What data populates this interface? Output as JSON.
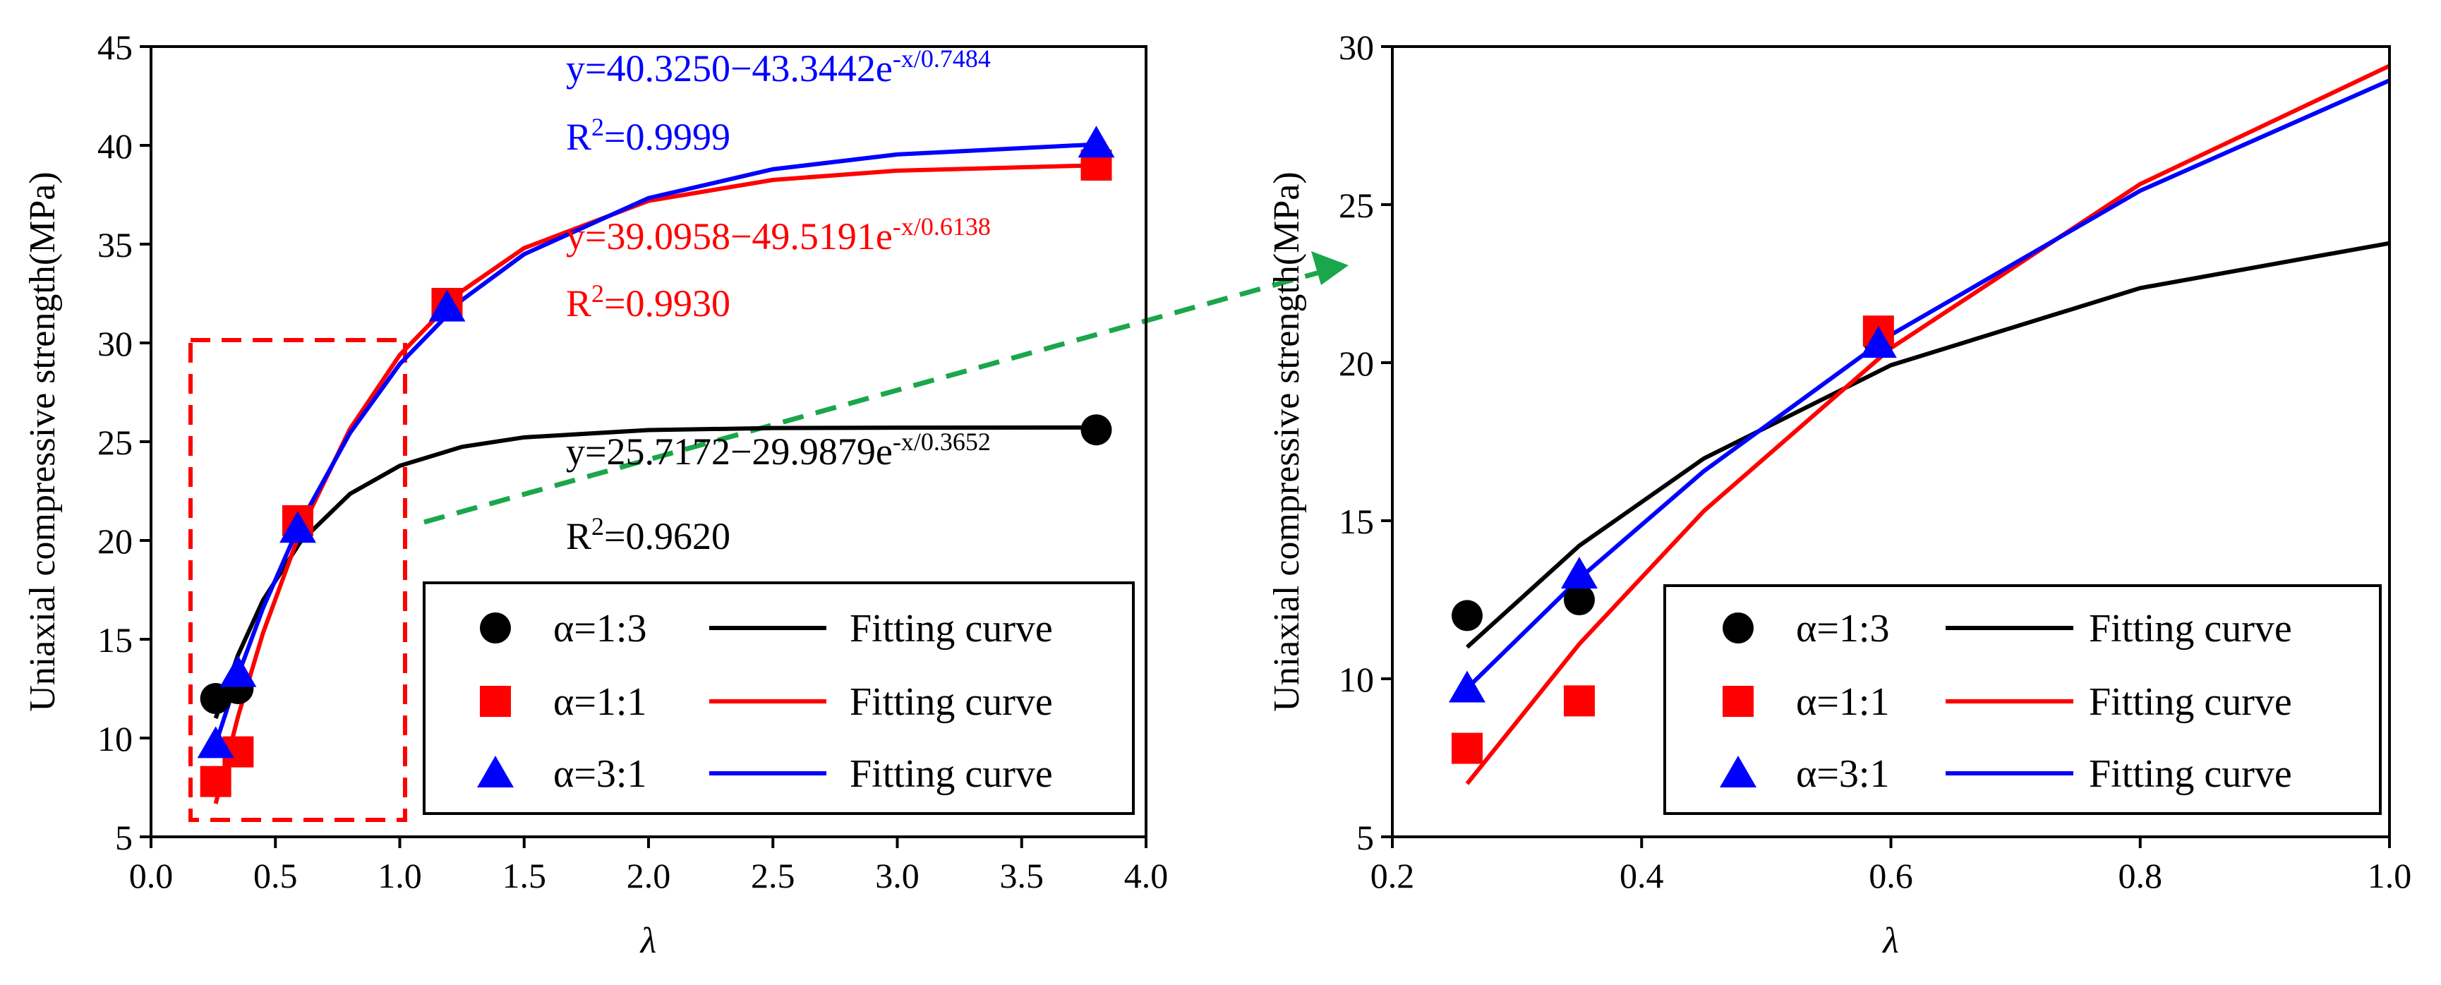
{
  "chart_data": [
    {
      "type": "scatter",
      "xlabel": "λ",
      "ylabel": "Uniaxial compressive strength(MPa)",
      "xlim": [
        0,
        4
      ],
      "xticks": [
        {
          "value": 0,
          "label": "0.0"
        },
        0.5,
        {
          "value": 1,
          "label": "1.0"
        },
        1.5,
        {
          "value": 2,
          "label": "2.0"
        },
        2.5,
        {
          "value": 3,
          "label": "3.0"
        },
        3.5,
        {
          "value": 4,
          "label": "4.0"
        }
      ],
      "ylim": [
        5,
        45
      ],
      "yticks": [
        5,
        10,
        15,
        20,
        25,
        30,
        35,
        40,
        45
      ],
      "legend": "lower right",
      "series": [
        {
          "name": "α=1:3",
          "color": "#000000",
          "marker": "circle",
          "x": [
            0.26,
            0.35,
            0.59,
            3.8
          ],
          "values": [
            12,
            12.5,
            20.7,
            25.6
          ],
          "fit_name": "Fitting curve",
          "fit_x": [
            0.26,
            0.35,
            0.45,
            0.6,
            0.8,
            1.0,
            1.25,
            1.5,
            2.0,
            2.5,
            3.0,
            3.8
          ],
          "fit_values": [
            11.0,
            14.21,
            16.97,
            19.92,
            22.36,
            23.78,
            24.74,
            25.22,
            25.59,
            25.69,
            25.71,
            25.72
          ]
        },
        {
          "name": "α=1:1",
          "color": "#ff0000",
          "marker": "square",
          "x": [
            0.26,
            0.35,
            0.59,
            1.19,
            3.8
          ],
          "values": [
            7.8,
            9.3,
            21,
            32,
            39
          ],
          "fit_name": "Fitting curve",
          "fit_x": [
            0.26,
            0.35,
            0.45,
            0.6,
            0.8,
            1.0,
            1.25,
            1.5,
            2.0,
            2.5,
            3.0,
            3.8
          ],
          "fit_values": [
            6.68,
            11.1,
            15.31,
            20.46,
            25.65,
            29.39,
            32.63,
            34.8,
            37.19,
            38.25,
            38.72,
            38.99
          ]
        },
        {
          "name": "α=3:1",
          "color": "#0000ff",
          "marker": "triangle",
          "x": [
            0.26,
            0.35,
            0.59,
            1.19,
            3.8
          ],
          "values": [
            9.7,
            13.3,
            20.6,
            31.8,
            40.1
          ],
          "fit_name": "Fitting curve",
          "fit_x": [
            0.26,
            0.35,
            0.45,
            0.6,
            0.8,
            1.0,
            1.25,
            1.5,
            2.0,
            2.5,
            3.0,
            3.8
          ],
          "fit_values": [
            9.7,
            13.17,
            16.57,
            20.88,
            25.44,
            28.93,
            32.17,
            34.49,
            37.33,
            38.79,
            39.54,
            40.05
          ]
        }
      ],
      "annotations": [
        {
          "color": "#0000ff",
          "lines": [
            [
              "y=40.3250−43.3442e",
              "-x/0.7484"
            ],
            [
              "R",
              "2",
              "=0.9999"
            ]
          ]
        },
        {
          "color": "#ff0000",
          "lines": [
            [
              "y=39.0958−49.5191e",
              "-x/0.6138"
            ],
            [
              "R",
              "2",
              "=0.9930"
            ]
          ]
        },
        {
          "color": "#000000",
          "lines": [
            [
              "y=25.7172−29.9879e",
              "-x/0.3652"
            ],
            [
              "R",
              "2",
              "=0.9620"
            ]
          ]
        }
      ]
    },
    {
      "type": "scatter",
      "xlabel": "λ",
      "ylabel": "Uniaxial compressive strength(MPa)",
      "xlim": [
        0.2,
        1.0
      ],
      "xticks": [
        0.2,
        0.4,
        0.6,
        0.8,
        {
          "value": 1,
          "label": "1.0"
        }
      ],
      "ylim": [
        5,
        30
      ],
      "yticks": [
        5,
        10,
        15,
        20,
        25,
        30
      ],
      "legend": "lower right",
      "series": [
        {
          "name": "α=1:3",
          "color": "#000000",
          "marker": "circle",
          "x": [
            0.26,
            0.35,
            0.59
          ],
          "values": [
            12,
            12.5,
            20.7
          ],
          "fit_name": "Fitting curve",
          "fit_x": [
            0.26,
            0.35,
            0.45,
            0.6,
            0.8,
            1.0
          ],
          "fit_values": [
            11.0,
            14.21,
            16.97,
            19.92,
            22.36,
            23.78
          ]
        },
        {
          "name": "α=1:1",
          "color": "#ff0000",
          "marker": "square",
          "x": [
            0.26,
            0.35,
            0.59
          ],
          "values": [
            7.8,
            9.3,
            21
          ],
          "fit_name": "Fitting curve",
          "fit_x": [
            0.26,
            0.35,
            0.45,
            0.6,
            0.8,
            1.0
          ],
          "fit_values": [
            6.68,
            11.1,
            15.31,
            20.46,
            25.65,
            29.39
          ]
        },
        {
          "name": "α=3:1",
          "color": "#0000ff",
          "marker": "triangle",
          "x": [
            0.26,
            0.35,
            0.59
          ],
          "values": [
            9.7,
            13.3,
            20.6
          ],
          "fit_name": "Fitting curve",
          "fit_x": [
            0.26,
            0.35,
            0.45,
            0.6,
            0.8,
            1.0
          ],
          "fit_values": [
            9.7,
            13.17,
            16.57,
            20.88,
            25.44,
            28.93
          ]
        }
      ]
    }
  ]
}
